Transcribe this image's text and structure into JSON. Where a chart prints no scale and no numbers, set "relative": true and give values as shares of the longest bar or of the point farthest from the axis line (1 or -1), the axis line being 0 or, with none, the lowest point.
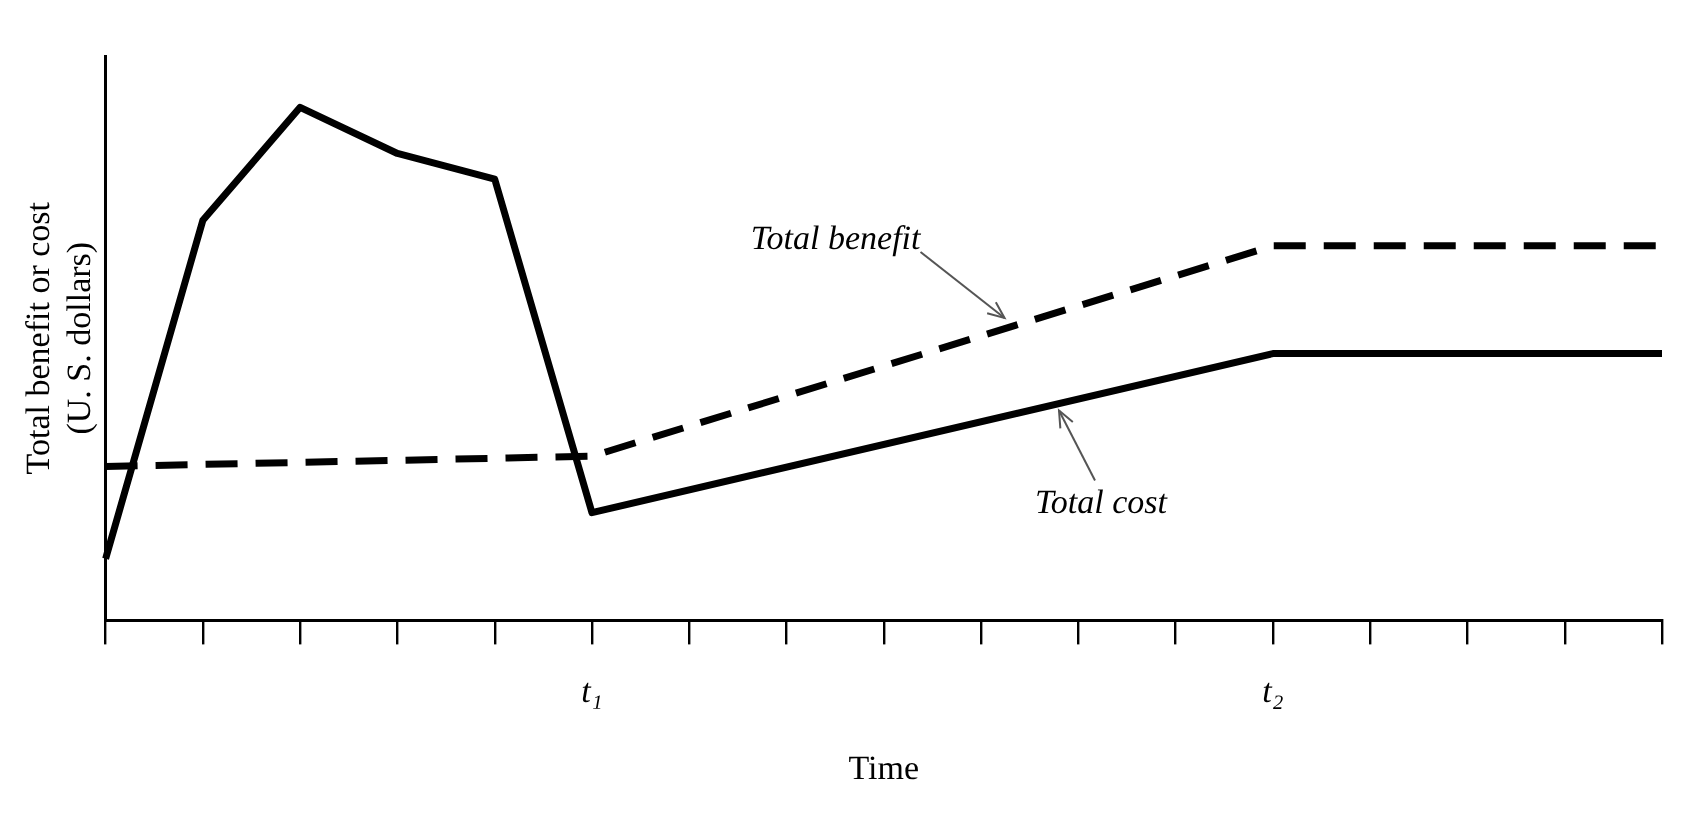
{
  "chart_data": {
    "type": "line",
    "relative": true,
    "xlabel": "Time",
    "ylabel": "Total benefit or cost\n(U. S. dollars)",
    "categories": [
      null,
      null,
      null,
      null,
      null,
      "t₁",
      null,
      null,
      null,
      null,
      null,
      null,
      "t₂",
      null,
      null,
      null,
      null
    ],
    "series": [
      {
        "name": "Total benefit",
        "color": "#000000",
        "line_style": "dashed",
        "values": [
          0.3,
          null,
          null,
          null,
          null,
          0.32,
          null,
          null,
          null,
          null,
          null,
          null,
          0.73,
          null,
          null,
          null,
          0.73
        ]
      },
      {
        "name": "Total cost",
        "color": "#000000",
        "line_style": "solid",
        "values": [
          0.12,
          0.78,
          1,
          0.91,
          0.86,
          0.21,
          null,
          null,
          null,
          null,
          null,
          null,
          0.52,
          null,
          null,
          null,
          0.52
        ]
      }
    ],
    "grid": false,
    "legend": false,
    "marker": "none"
  }
}
